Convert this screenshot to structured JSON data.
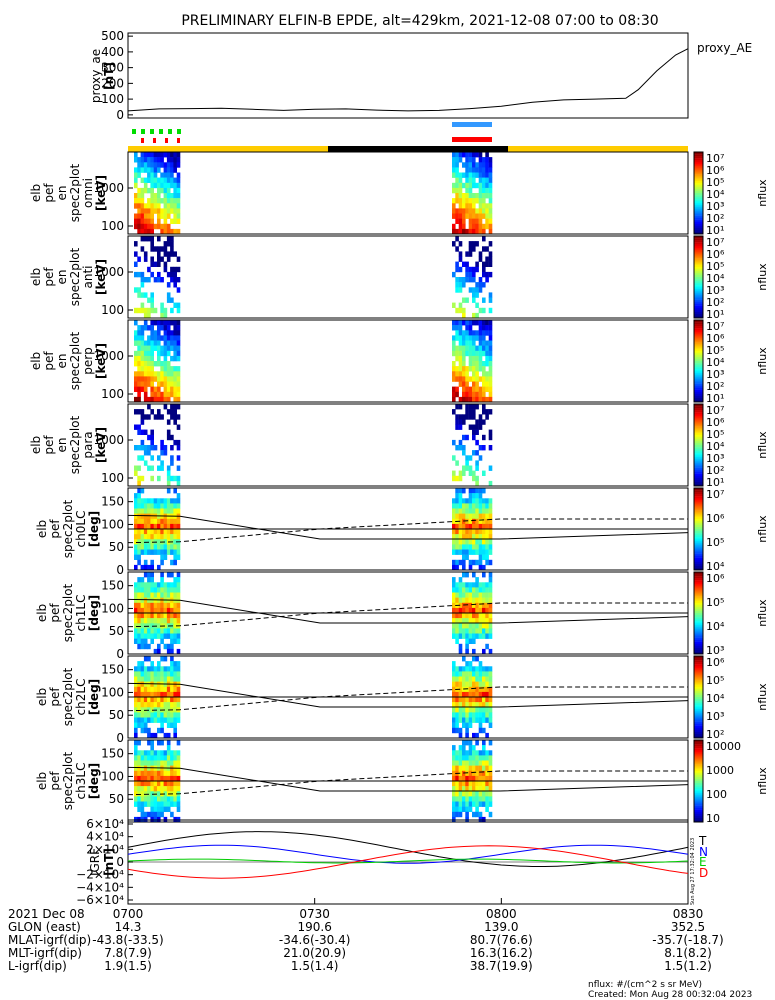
{
  "title": "PRELIMINARY ELFIN-B EPDE, alt=429km, 2021-12-08 07:00 to 08:30",
  "chart_data": [
    {
      "type": "line",
      "ylabel": [
        "proxy_ae",
        "[nT]"
      ],
      "yticks": [
        "500",
        "400",
        "300",
        "200",
        "100",
        "0"
      ],
      "ylim": [
        -20,
        520
      ],
      "legend": "proxy_AE",
      "x_minutes": [
        0,
        5,
        10,
        15,
        20,
        25,
        30,
        35,
        40,
        45,
        50,
        55,
        60,
        65,
        70,
        75,
        80,
        82,
        85,
        88,
        90
      ],
      "values": [
        25,
        38,
        40,
        42,
        35,
        28,
        35,
        38,
        30,
        25,
        28,
        40,
        55,
        80,
        95,
        100,
        105,
        160,
        280,
        380,
        420
      ],
      "color": "#000000"
    },
    {
      "type": "heatmap",
      "ylabel": [
        "elb",
        "pef",
        "en",
        "spec2plot",
        "omni",
        "[keV]"
      ],
      "yticks": [
        "1000",
        "100"
      ],
      "colorbar": {
        "label": "nflux",
        "ticks": [
          "10⁷",
          "10⁶",
          "10⁵",
          "10⁴",
          "10³",
          "10²",
          "10¹"
        ]
      }
    },
    {
      "type": "heatmap",
      "ylabel": [
        "elb",
        "pef",
        "en",
        "spec2plot",
        "anti",
        "[keV]"
      ],
      "yticks": [
        "1000",
        "100"
      ],
      "colorbar": {
        "label": "nflux",
        "ticks": [
          "10⁷",
          "10⁶",
          "10⁵",
          "10⁴",
          "10³",
          "10²",
          "10¹"
        ]
      }
    },
    {
      "type": "heatmap",
      "ylabel": [
        "elb",
        "pef",
        "en",
        "spec2plot",
        "perp",
        "[keV]"
      ],
      "yticks": [
        "1000",
        "100"
      ],
      "colorbar": {
        "label": "nflux",
        "ticks": [
          "10⁷",
          "10⁶",
          "10⁵",
          "10⁴",
          "10³",
          "10²",
          "10¹"
        ]
      }
    },
    {
      "type": "heatmap",
      "ylabel": [
        "elb",
        "pef",
        "en",
        "spec2plot",
        "para",
        "[keV]"
      ],
      "yticks": [
        "1000",
        "100"
      ],
      "colorbar": {
        "label": "nflux",
        "ticks": [
          "10⁷",
          "10⁶",
          "10⁵",
          "10⁴",
          "10³",
          "10²",
          "10¹"
        ]
      }
    },
    {
      "type": "heatmap",
      "ylabel": [
        "elb",
        "pef",
        "spec2plot",
        "ch0LC",
        "[deg]"
      ],
      "yticks": [
        "150",
        "100",
        "50",
        "0"
      ],
      "colorbar": {
        "label": "nflux",
        "ticks": [
          "10⁷",
          "10⁶",
          "10⁵",
          "10⁴"
        ]
      }
    },
    {
      "type": "heatmap",
      "ylabel": [
        "elb",
        "pef",
        "spec2plot",
        "ch1LC",
        "[deg]"
      ],
      "yticks": [
        "150",
        "100",
        "50",
        "0"
      ],
      "colorbar": {
        "label": "nflux",
        "ticks": [
          "10⁶",
          "10⁵",
          "10⁴",
          "10³"
        ]
      }
    },
    {
      "type": "heatmap",
      "ylabel": [
        "elb",
        "pef",
        "spec2plot",
        "ch2LC",
        "[deg]"
      ],
      "yticks": [
        "150",
        "100",
        "50",
        "0"
      ],
      "colorbar": {
        "label": "nflux",
        "ticks": [
          "10⁶",
          "10⁵",
          "10⁴",
          "10³",
          "10²"
        ]
      }
    },
    {
      "type": "heatmap",
      "ylabel": [
        "elb",
        "pef",
        "spec2plot",
        "ch3LC",
        "[deg]"
      ],
      "yticks": [
        "150",
        "100",
        "50"
      ],
      "colorbar": {
        "label": "nflux",
        "ticks": [
          "10000",
          "1000",
          "100",
          "10"
        ]
      }
    },
    {
      "type": "line",
      "ylabel": [
        "IGRF",
        "[nT]"
      ],
      "yticks": [
        "6×10⁴",
        "4×10⁴",
        "2×10⁴",
        "0",
        "−2×10⁴",
        "−4×10⁴",
        "−6×10⁴"
      ],
      "series": [
        {
          "name": "T",
          "color": "#000000"
        },
        {
          "name": "N",
          "color": "#0000ff"
        },
        {
          "name": "E",
          "color": "#00cc00"
        },
        {
          "name": "D",
          "color": "#ff0000"
        }
      ],
      "side_note": "Sun Aug 27 17:32:04 2023"
    }
  ],
  "xaxis": {
    "ticks": [
      "0700",
      "0730",
      "0800",
      "0830"
    ],
    "rows": [
      {
        "label": "2021 Dec 08",
        "values": [
          "0700",
          "0730",
          "0800",
          "0830"
        ]
      },
      {
        "label": "GLON (east)",
        "values": [
          "14.3",
          "190.6",
          "139.0",
          "352.5"
        ]
      },
      {
        "label": "MLAT-igrf(dip)",
        "values": [
          "-43.8(-33.5)",
          "-34.6(-30.4)",
          "80.7(76.6)",
          "-35.7(-18.7)"
        ]
      },
      {
        "label": "MLT-igrf(dip)",
        "values": [
          "7.8(7.9)",
          "21.0(20.9)",
          "16.3(16.2)",
          "8.1(8.2)"
        ]
      },
      {
        "label": "L-igrf(dip)",
        "values": [
          "1.9(1.5)",
          "1.5(1.4)",
          "38.7(19.9)",
          "1.5(1.2)"
        ]
      }
    ]
  },
  "footer": {
    "units": "nflux: #/(cm^2 s sr MeV)",
    "created": "Created: Mon Aug 28 00:32:04 2023"
  },
  "colors": {
    "sunlight": "#ffcc00",
    "shadow": "#000000",
    "ibo": "#3399ff",
    "obo": "#ff0000",
    "green_mark": "#00dd00"
  }
}
